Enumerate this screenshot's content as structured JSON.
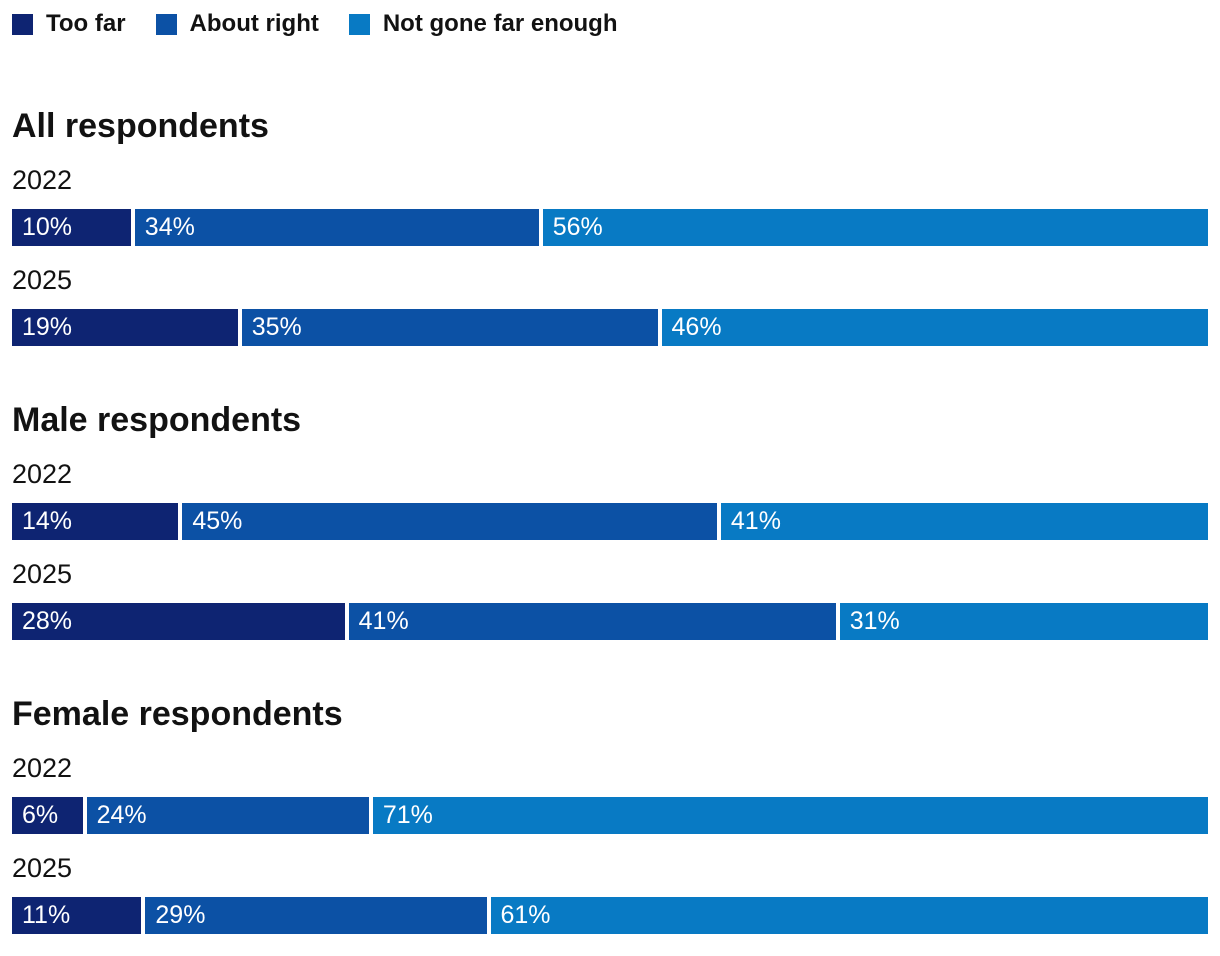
{
  "legend": {
    "items": [
      {
        "label": "Too far",
        "color": "#0e2472"
      },
      {
        "label": "About right",
        "color": "#0c51a5"
      },
      {
        "label": "Not gone far enough",
        "color": "#087ac4"
      }
    ]
  },
  "chart_data": {
    "type": "bar",
    "stacked": true,
    "orientation": "horizontal",
    "unit": "%",
    "xlim": [
      0,
      100
    ],
    "grid": false,
    "legend_position": "top-left",
    "series_names": [
      "Too far",
      "About right",
      "Not gone far enough"
    ],
    "colors": [
      "#0e2472",
      "#0c51a5",
      "#087ac4"
    ],
    "groups": [
      {
        "title": "All respondents",
        "rows": [
          {
            "year": "2022",
            "values": [
              10,
              34,
              56
            ],
            "labels": [
              "10%",
              "34%",
              "56%"
            ]
          },
          {
            "year": "2025",
            "values": [
              19,
              35,
              46
            ],
            "labels": [
              "19%",
              "35%",
              "46%"
            ]
          }
        ]
      },
      {
        "title": "Male respondents",
        "rows": [
          {
            "year": "2022",
            "values": [
              14,
              45,
              41
            ],
            "labels": [
              "14%",
              "45%",
              "41%"
            ]
          },
          {
            "year": "2025",
            "values": [
              28,
              41,
              31
            ],
            "labels": [
              "28%",
              "41%",
              "31%"
            ]
          }
        ]
      },
      {
        "title": "Female respondents",
        "rows": [
          {
            "year": "2022",
            "values": [
              6,
              24,
              71
            ],
            "labels": [
              "6%",
              "24%",
              "71%"
            ]
          },
          {
            "year": "2025",
            "values": [
              11,
              29,
              61
            ],
            "labels": [
              "11%",
              "29%",
              "61%"
            ]
          }
        ]
      }
    ]
  }
}
